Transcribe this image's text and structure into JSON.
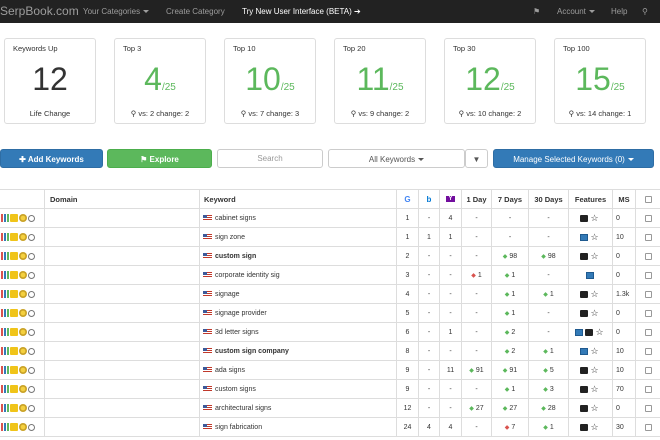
{
  "nav": {
    "brand": "SerpBook.com",
    "categories": "Your Categories",
    "create": "Create Category",
    "beta": "Try New User Interface (BETA)",
    "account": "Account",
    "help": "Help"
  },
  "cards": [
    {
      "title": "Keywords Up",
      "value": "12",
      "denom": "",
      "sub": "Life Change"
    },
    {
      "title": "Top 3",
      "value": "4",
      "denom": "/25",
      "sub": "vs: 2 change: 2"
    },
    {
      "title": "Top 10",
      "value": "10",
      "denom": "/25",
      "sub": "vs: 7 change: 3"
    },
    {
      "title": "Top 20",
      "value": "11",
      "denom": "/25",
      "sub": "vs: 9 change: 2"
    },
    {
      "title": "Top 30",
      "value": "12",
      "denom": "/25",
      "sub": "vs: 10 change: 2"
    },
    {
      "title": "Top 100",
      "value": "15",
      "denom": "/25",
      "sub": "vs: 14 change: 1"
    }
  ],
  "actions": {
    "add": "Add Keywords",
    "explore": "Explore",
    "search_placeholder": "Search",
    "all_keywords": "All Keywords",
    "manage": "Manage Selected Keywords (0)"
  },
  "table": {
    "headers": {
      "domain": "Domain",
      "keyword": "Keyword",
      "d1": "1 Day",
      "d7": "7 Days",
      "d30": "30 Days",
      "features": "Features",
      "ms": "MS"
    },
    "rows": [
      {
        "keyword": "cabinet signs",
        "bold": false,
        "g": "1",
        "b": "-",
        "y": "4",
        "d1": "-",
        "d1dir": "",
        "d7": "-",
        "d7dir": "",
        "d30": "-",
        "d30dir": "",
        "features": [
          "book",
          "star"
        ],
        "ms": "0"
      },
      {
        "keyword": "sign zone",
        "bold": false,
        "g": "1",
        "b": "1",
        "y": "1",
        "d1": "-",
        "d1dir": "",
        "d7": "-",
        "d7dir": "",
        "d30": "-",
        "d30dir": "",
        "features": [
          "cal",
          "star"
        ],
        "ms": "10"
      },
      {
        "keyword": "custom sign",
        "bold": true,
        "g": "2",
        "b": "-",
        "y": "-",
        "d1": "-",
        "d1dir": "",
        "d7": "98",
        "d7dir": "up",
        "d30": "98",
        "d30dir": "up",
        "features": [
          "book",
          "star"
        ],
        "ms": "0"
      },
      {
        "keyword": "corporate identity sig",
        "bold": false,
        "g": "3",
        "b": "-",
        "y": "-",
        "d1": "1",
        "d1dir": "down",
        "d7": "1",
        "d7dir": "up",
        "d30": "-",
        "d30dir": "",
        "features": [
          "cal"
        ],
        "ms": "0"
      },
      {
        "keyword": "signage",
        "bold": false,
        "g": "4",
        "b": "-",
        "y": "-",
        "d1": "-",
        "d1dir": "",
        "d7": "1",
        "d7dir": "up",
        "d30": "1",
        "d30dir": "up",
        "features": [
          "book",
          "star"
        ],
        "ms": "1.3k"
      },
      {
        "keyword": "signage provider",
        "bold": false,
        "g": "5",
        "b": "-",
        "y": "-",
        "d1": "-",
        "d1dir": "",
        "d7": "1",
        "d7dir": "up",
        "d30": "-",
        "d30dir": "",
        "features": [
          "book",
          "star"
        ],
        "ms": "0"
      },
      {
        "keyword": "3d letter signs",
        "bold": false,
        "g": "6",
        "b": "-",
        "y": "1",
        "d1": "-",
        "d1dir": "",
        "d7": "2",
        "d7dir": "up",
        "d30": "-",
        "d30dir": "",
        "features": [
          "cal",
          "book",
          "star"
        ],
        "ms": "0"
      },
      {
        "keyword": "custom sign company",
        "bold": true,
        "g": "8",
        "b": "-",
        "y": "-",
        "d1": "-",
        "d1dir": "",
        "d7": "2",
        "d7dir": "up",
        "d30": "1",
        "d30dir": "up",
        "features": [
          "cal",
          "star"
        ],
        "ms": "10"
      },
      {
        "keyword": "ada signs",
        "bold": false,
        "g": "9",
        "b": "-",
        "y": "11",
        "d1": "91",
        "d1dir": "up",
        "d7": "91",
        "d7dir": "up",
        "d30": "5",
        "d30dir": "up",
        "features": [
          "book",
          "star"
        ],
        "ms": "10"
      },
      {
        "keyword": "custom signs",
        "bold": false,
        "g": "9",
        "b": "-",
        "y": "-",
        "d1": "-",
        "d1dir": "",
        "d7": "1",
        "d7dir": "up",
        "d30": "3",
        "d30dir": "up",
        "features": [
          "book",
          "star"
        ],
        "ms": "70"
      },
      {
        "keyword": "architectural signs",
        "bold": false,
        "g": "12",
        "b": "-",
        "y": "-",
        "d1": "27",
        "d1dir": "up",
        "d7": "27",
        "d7dir": "up",
        "d30": "28",
        "d30dir": "up",
        "features": [
          "book",
          "star"
        ],
        "ms": "0"
      },
      {
        "keyword": "sign fabrication",
        "bold": false,
        "g": "24",
        "b": "4",
        "y": "4",
        "d1": "-",
        "d1dir": "",
        "d7": "7",
        "d7dir": "down",
        "d30": "1",
        "d30dir": "up",
        "features": [
          "book",
          "star"
        ],
        "ms": "30"
      }
    ]
  }
}
